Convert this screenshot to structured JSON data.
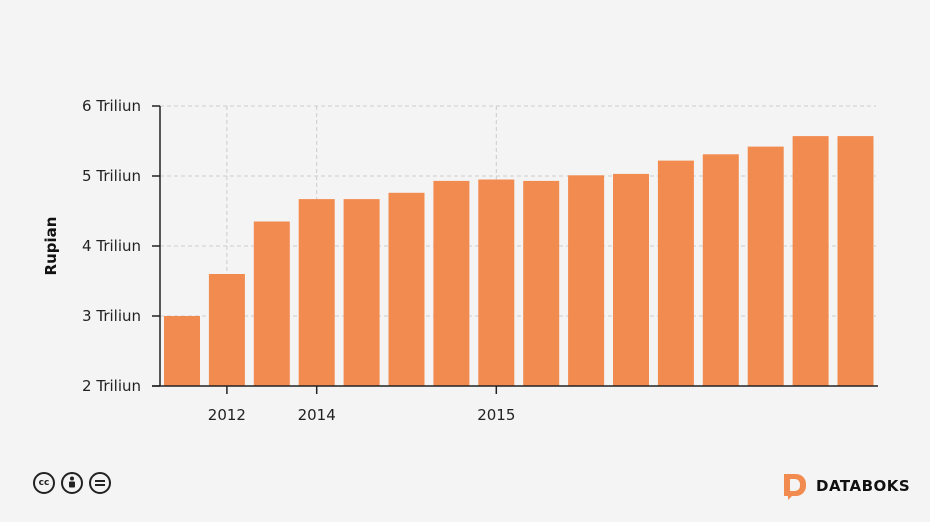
{
  "colors": {
    "bar": "#f28b4f",
    "grid": "#cccccc",
    "axis": "#222222"
  },
  "chart_data": {
    "type": "bar",
    "title": "",
    "ylabel": "Rupian",
    "xlabel": "",
    "ylim": [
      2,
      6
    ],
    "yticks": [
      {
        "value": 2,
        "label": "2 Triliun"
      },
      {
        "value": 3,
        "label": "3 Triliun"
      },
      {
        "value": 4,
        "label": "4 Triliun"
      },
      {
        "value": 5,
        "label": "5 Triliun"
      },
      {
        "value": 6,
        "label": "6 Triliun"
      }
    ],
    "xticks": [
      {
        "bar_index": 1,
        "label": "2012"
      },
      {
        "bar_index": 3,
        "label": "2014"
      },
      {
        "bar_index": 7,
        "label": "2015"
      }
    ],
    "grid": true,
    "values": [
      3.0,
      3.6,
      4.35,
      4.67,
      4.67,
      4.76,
      4.93,
      4.95,
      4.93,
      5.01,
      5.03,
      5.22,
      5.31,
      5.42,
      5.57,
      5.57
    ]
  },
  "footer": {
    "license_icons": [
      "cc-icon",
      "by-icon",
      "nd-icon"
    ],
    "brand": "DATABOKS"
  }
}
